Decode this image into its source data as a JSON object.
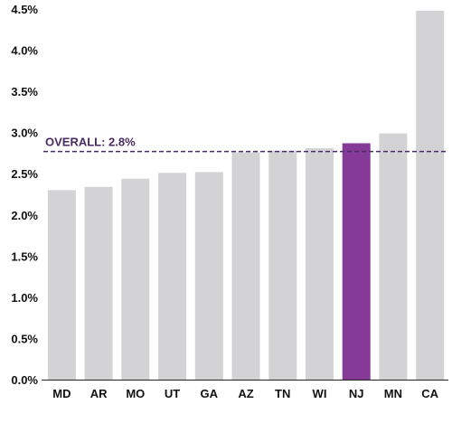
{
  "chart_data": {
    "type": "bar",
    "categories": [
      "MD",
      "AR",
      "MO",
      "UT",
      "GA",
      "AZ",
      "TN",
      "WI",
      "NJ",
      "MN",
      "CA"
    ],
    "values": [
      2.3,
      2.34,
      2.44,
      2.51,
      2.52,
      2.76,
      2.78,
      2.81,
      2.87,
      2.99,
      4.48
    ],
    "highlight_category": "NJ",
    "yticks": [
      "0.0%",
      "0.5%",
      "1.0%",
      "1.5%",
      "2.0%",
      "2.5%",
      "3.0%",
      "3.5%",
      "4.0%",
      "4.5%"
    ],
    "ylim": [
      0,
      4.5
    ],
    "grid": false,
    "reference_line": {
      "value": 2.77,
      "label": "OVERALL: 2.8%"
    },
    "colors": {
      "bar": "#d3d3d5",
      "highlight": "#853a97",
      "reference": "#4a2a63",
      "axis": "#222222"
    }
  }
}
